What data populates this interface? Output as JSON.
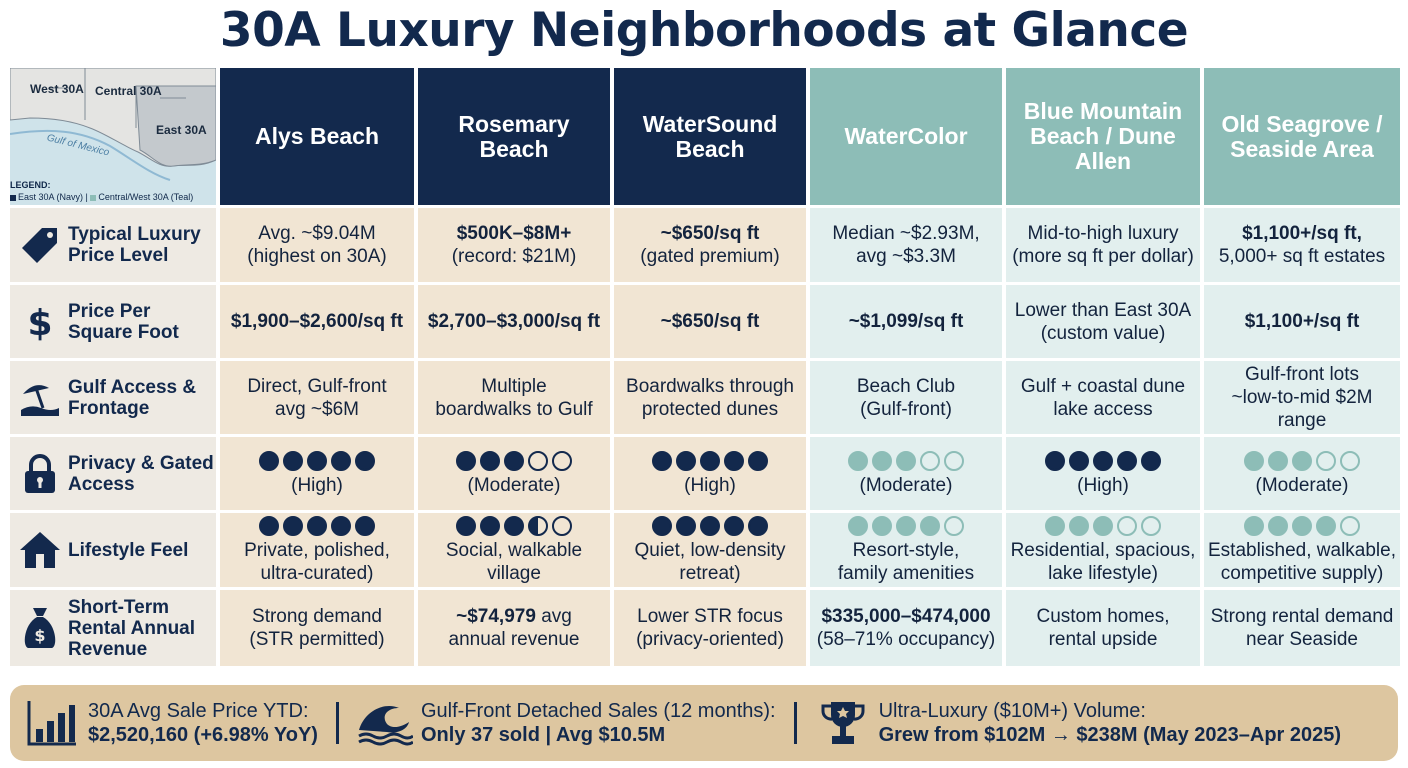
{
  "title": "30A Luxury Neighborhoods at Glance",
  "map": {
    "labels": {
      "west": "West 30A",
      "central": "Central 30A",
      "east": "East 30A",
      "gulf": "Gulf of Mexico"
    },
    "legend_title": "LEGEND:",
    "legend_navy": "East 30A (Navy)",
    "legend_sep": "|",
    "legend_teal": "Central/West 30A (Teal)"
  },
  "headers": [
    {
      "name": "Alys Beach",
      "group": "navy"
    },
    {
      "name": "Rosemary Beach",
      "group": "navy"
    },
    {
      "name": "WaterSound Beach",
      "group": "navy"
    },
    {
      "name": "WaterColor",
      "group": "teal"
    },
    {
      "name": "Blue Mountain Beach / Dune Allen",
      "group": "teal"
    },
    {
      "name": "Old Seagrove / Seaside Area",
      "group": "teal"
    }
  ],
  "rows": {
    "price_level": {
      "label": "Typical Luxury Price Level",
      "icon": "price-tag-icon",
      "cells": [
        {
          "l1": "Avg. ~$9.04M",
          "l2": "(highest on 30A)"
        },
        {
          "l1": "$500K–$8M+",
          "l2": "(record: $21M)"
        },
        {
          "l1": "~$650/sq ft",
          "l2": "(gated premium)"
        },
        {
          "l1": "Median ~$2.93M,",
          "l2": "avg ~$3.3M"
        },
        {
          "l1": "Mid-to-high luxury",
          "l2": "(more sq ft per dollar)"
        },
        {
          "l1": "$1,100+/sq ft,",
          "l2": "5,000+ sq ft estates"
        }
      ]
    },
    "price_sqft": {
      "label": "Price Per Square Foot",
      "icon": "dollar-icon",
      "cells": [
        {
          "l1": "$1,900–$2,600/sq ft",
          "l2": ""
        },
        {
          "l1": "$2,700–$3,000/sq ft",
          "l2": ""
        },
        {
          "l1": "~$650/sq ft",
          "l2": ""
        },
        {
          "l1": "~$1,099/sq ft",
          "l2": ""
        },
        {
          "l1": "Lower than East 30A",
          "l2": "(custom value)"
        },
        {
          "l1": "$1,100+/sq ft",
          "l2": ""
        }
      ]
    },
    "gulf_access": {
      "label": "Gulf Access & Frontage",
      "icon": "beach-umbrella-icon",
      "cells": [
        {
          "l1": "Direct, Gulf-front",
          "l2": "avg ~$6M"
        },
        {
          "l1": "Multiple",
          "l2": "boardwalks to Gulf"
        },
        {
          "l1": "Boardwalks through",
          "l2": "protected dunes"
        },
        {
          "l1": "Beach Club",
          "l2": "(Gulf-front)"
        },
        {
          "l1": "Gulf + coastal dune",
          "l2": "lake access"
        },
        {
          "l1": "Gulf-front lots",
          "l2": "~low-to-mid $2M range"
        }
      ]
    },
    "privacy": {
      "label": "Privacy & Gated Access",
      "icon": "padlock-icon",
      "cells": [
        {
          "rating": 5,
          "text": "(High)"
        },
        {
          "rating": 3,
          "text": "(Moderate)"
        },
        {
          "rating": 5,
          "text": "(High)"
        },
        {
          "rating": 3,
          "text": "(Moderate)"
        },
        {
          "rating": 5,
          "text": "(High)"
        },
        {
          "rating": 3,
          "text": "(Moderate)"
        }
      ]
    },
    "lifestyle": {
      "label": "Lifestyle Feel",
      "icon": "house-icon",
      "cells": [
        {
          "rating": 5,
          "l1": "Private, polished,",
          "l2": "ultra-curated)"
        },
        {
          "rating": 3.5,
          "l1": "Social, walkable",
          "l2": "village"
        },
        {
          "rating": 5,
          "l1": "Quiet, low-density",
          "l2": "retreat)"
        },
        {
          "rating": 4,
          "l1": "Resort-style,",
          "l2": "family amenities"
        },
        {
          "rating": 3,
          "l1": "Residential, spacious,",
          "l2": "lake lifestyle)"
        },
        {
          "rating": 4,
          "l1": "Established, walkable,",
          "l2": "competitive supply)"
        }
      ]
    },
    "str": {
      "label": "Short-Term Rental Annual Revenue",
      "icon": "money-bag-icon",
      "cells": [
        {
          "l1": "Strong demand",
          "l2": "(STR permitted)"
        },
        {
          "l1a": "~$74,979",
          "l1b": " avg",
          "l2": "annual revenue"
        },
        {
          "l1": "Lower STR focus",
          "l2": "(privacy-oriented)"
        },
        {
          "l1": "$335,000–$474,000",
          "l2": "(58–71% occupancy)"
        },
        {
          "l1": "Custom homes,",
          "l2": "rental upside"
        },
        {
          "l1": "Strong rental demand",
          "l2": "near Seaside"
        }
      ]
    }
  },
  "stats": [
    {
      "icon": "bar-chart-icon",
      "label": "30A Avg Sale Price YTD:",
      "value": "$2,520,160 (+6.98% YoY)"
    },
    {
      "icon": "wave-icon",
      "label": "Gulf-Front Detached Sales (12 months):",
      "value": "Only 37 sold | Avg $10.5M"
    },
    {
      "icon": "trophy-icon",
      "label": "Ultra-Luxury ($10M+) Volume:",
      "value": "Grew from $102M → $238M (May 2023–Apr 2025)"
    }
  ],
  "colors": {
    "navy": "#13294d",
    "teal": "#8dbdb7",
    "sand": "#f1e5d3",
    "mint": "#e2efee",
    "bar": "#ddc6a0"
  }
}
